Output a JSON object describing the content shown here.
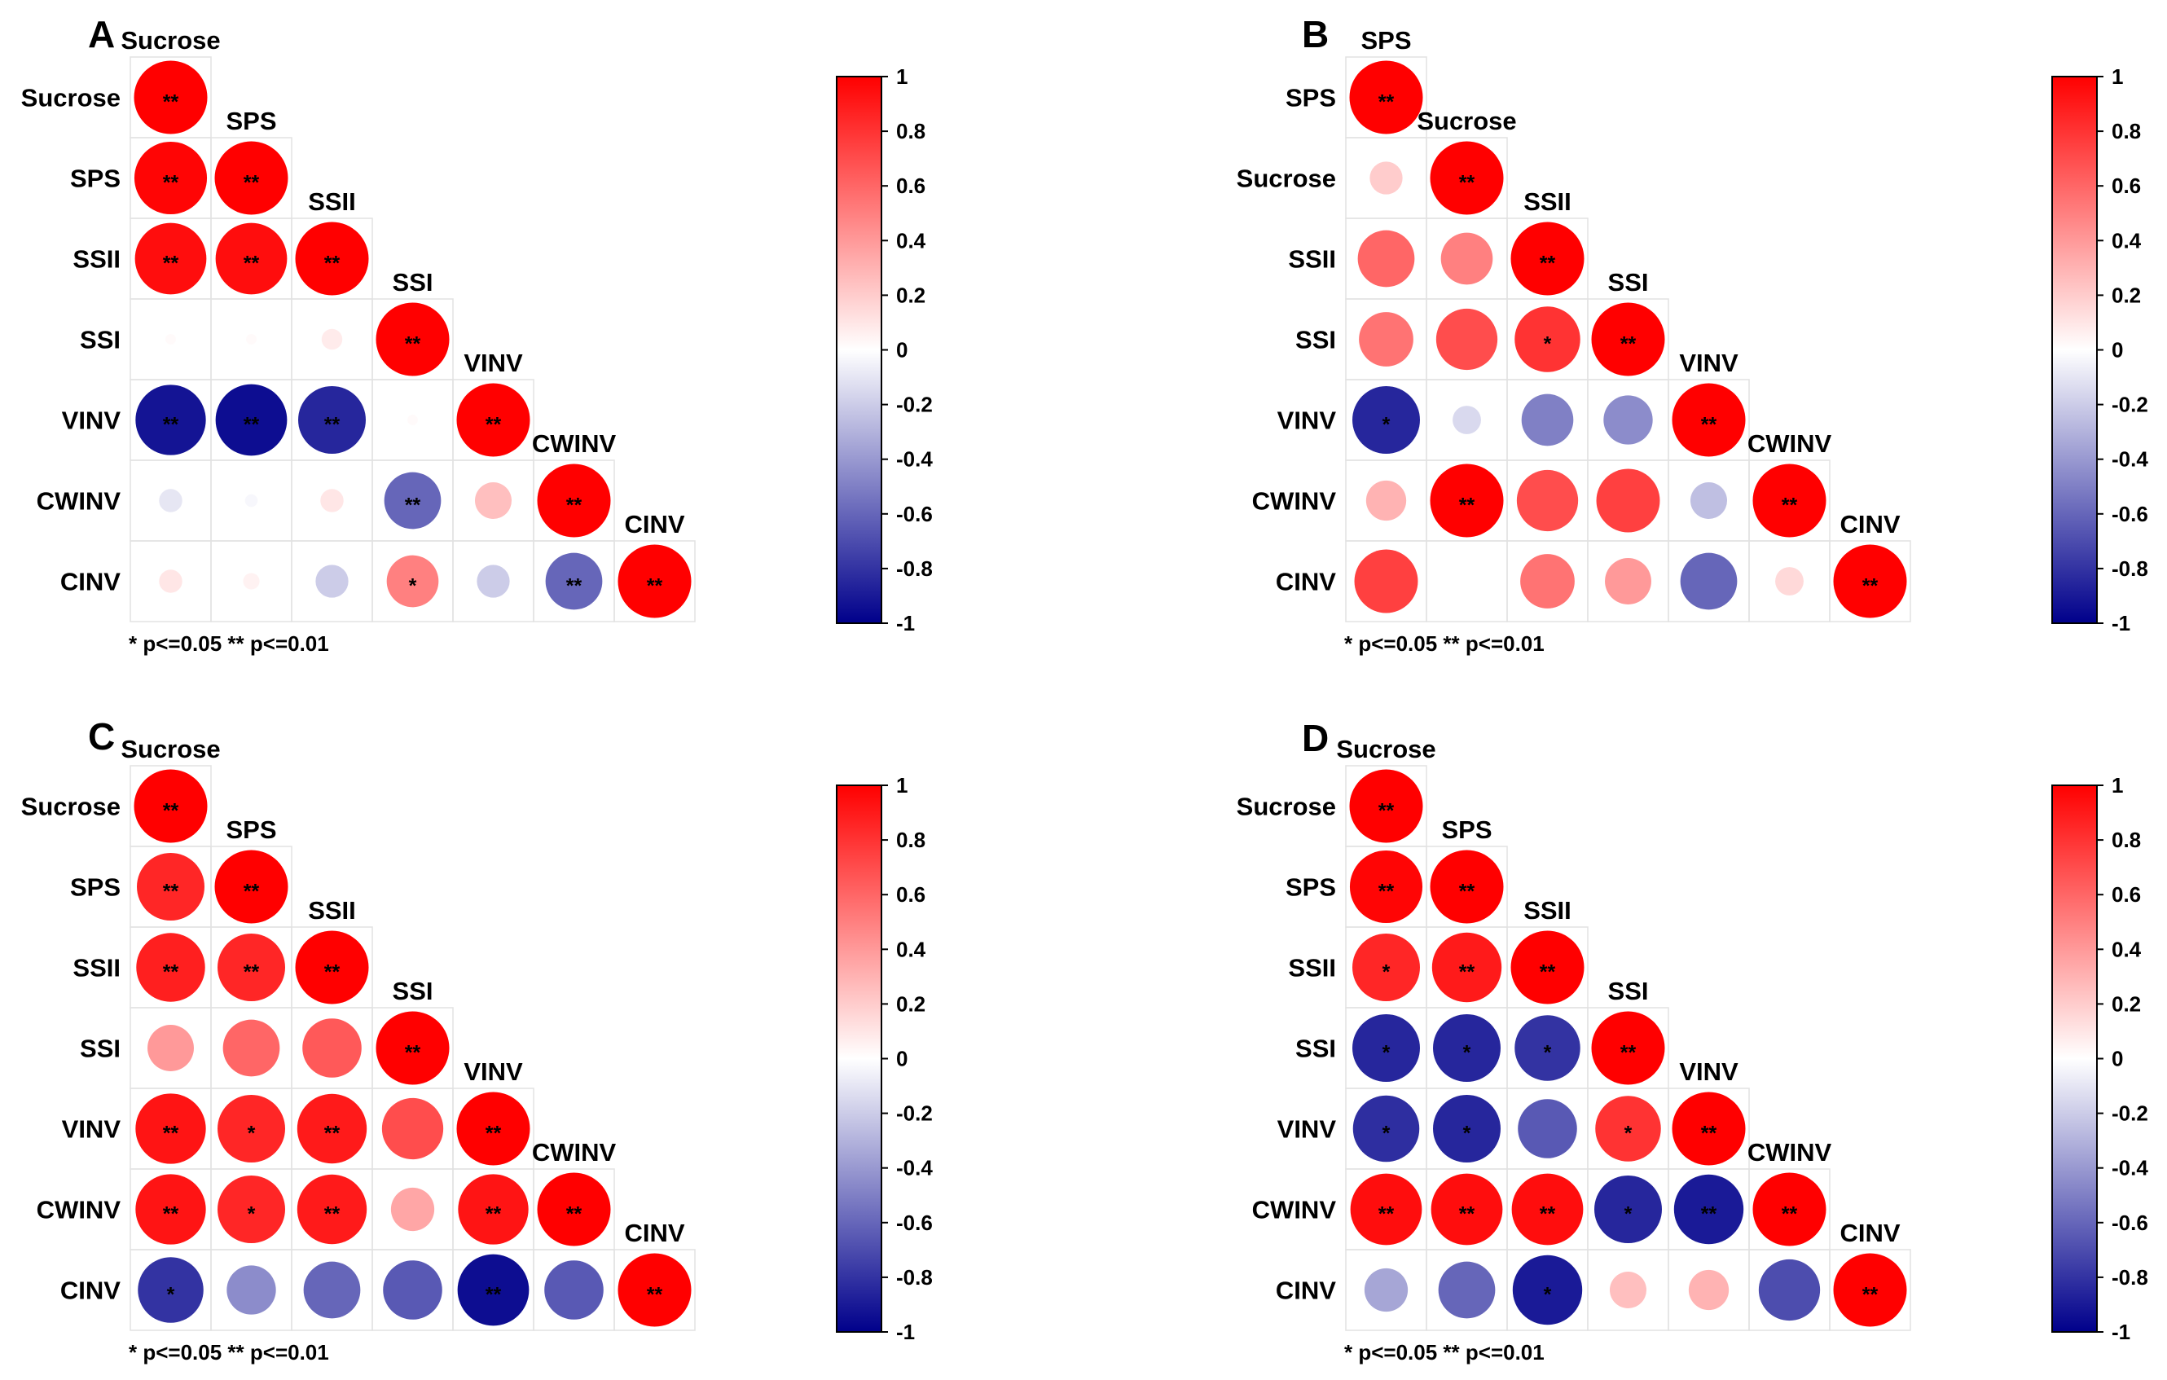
{
  "chart_data": [
    {
      "type": "heatmap",
      "panel": "A",
      "variables": [
        "Sucrose",
        "SPS",
        "SSII",
        "SSI",
        "VINV",
        "CWINV",
        "CINV"
      ],
      "correlations": [
        [
          1.0
        ],
        [
          0.98,
          1.0
        ],
        [
          0.95,
          0.95,
          1.0
        ],
        [
          0.02,
          0.02,
          0.08,
          1.0
        ],
        [
          -0.92,
          -0.95,
          -0.85,
          0.02,
          1.0
        ],
        [
          -0.1,
          -0.03,
          0.1,
          -0.6,
          0.25,
          1.0
        ],
        [
          0.1,
          0.05,
          -0.2,
          0.5,
          -0.2,
          -0.6,
          1.0
        ]
      ],
      "significance": [
        [
          "**"
        ],
        [
          "**",
          "**"
        ],
        [
          "**",
          "**",
          "**"
        ],
        [
          "",
          "",
          "",
          "**"
        ],
        [
          "**",
          "**",
          "**",
          "",
          "**"
        ],
        [
          "",
          "",
          "",
          "**",
          "",
          "**"
        ],
        [
          "",
          "",
          "",
          "*",
          "",
          "**",
          "**"
        ]
      ],
      "colorbar_ticks": [
        "1",
        "0.8",
        "0.6",
        "0.4",
        "0.2",
        "0",
        "-0.2",
        "-0.4",
        "-0.6",
        "-0.8",
        "-1"
      ],
      "note": "* p<=0.05  ** p<=0.01"
    },
    {
      "type": "heatmap",
      "panel": "B",
      "variables": [
        "SPS",
        "Sucrose",
        "SSII",
        "SSI",
        "VINV",
        "CWINV",
        "CINV"
      ],
      "correlations": [
        [
          1.0
        ],
        [
          0.2,
          1.0
        ],
        [
          0.6,
          0.5,
          1.0
        ],
        [
          0.55,
          0.7,
          0.8,
          1.0
        ],
        [
          -0.85,
          -0.15,
          -0.5,
          -0.45,
          1.0
        ],
        [
          0.3,
          1.0,
          0.7,
          0.75,
          -0.25,
          1.0
        ],
        [
          0.75,
          0.0,
          0.55,
          0.4,
          -0.6,
          0.15,
          1.0
        ]
      ],
      "significance": [
        [
          "**"
        ],
        [
          "",
          "**"
        ],
        [
          "",
          "",
          "**"
        ],
        [
          "",
          "",
          "*",
          "**"
        ],
        [
          "*",
          "",
          "",
          "",
          "**"
        ],
        [
          "",
          "**",
          "",
          "",
          "",
          "**"
        ],
        [
          "",
          "",
          "",
          "",
          "",
          "",
          "**"
        ]
      ],
      "colorbar_ticks": [
        "1",
        "0.8",
        "0.6",
        "0.4",
        "0.2",
        "0",
        "-0.2",
        "-0.4",
        "-0.6",
        "-0.8",
        "-1"
      ],
      "note": "* p<=0.05  ** p<=0.01"
    },
    {
      "type": "heatmap",
      "panel": "C",
      "variables": [
        "Sucrose",
        "SPS",
        "SSII",
        "SSI",
        "VINV",
        "CWINV",
        "CINV"
      ],
      "correlations": [
        [
          1.0
        ],
        [
          0.85,
          1.0
        ],
        [
          0.88,
          0.85,
          1.0
        ],
        [
          0.4,
          0.6,
          0.65,
          1.0
        ],
        [
          0.92,
          0.85,
          0.9,
          0.7,
          1.0
        ],
        [
          0.92,
          0.85,
          0.9,
          0.35,
          0.92,
          1.0
        ],
        [
          -0.8,
          -0.45,
          -0.6,
          -0.65,
          -0.95,
          -0.65,
          1.0
        ]
      ],
      "significance": [
        [
          "**"
        ],
        [
          "**",
          "**"
        ],
        [
          "**",
          "**",
          "**"
        ],
        [
          "",
          "",
          "",
          "**"
        ],
        [
          "**",
          "*",
          "**",
          "",
          "**"
        ],
        [
          "**",
          "*",
          "**",
          "",
          "**",
          "**"
        ],
        [
          "*",
          "",
          "",
          "",
          "**",
          "",
          "**"
        ]
      ],
      "colorbar_ticks": [
        "1",
        "0.8",
        "0.6",
        "0.4",
        "0.2",
        "0",
        "-0.2",
        "-0.4",
        "-0.6",
        "-0.8",
        "-1"
      ],
      "note": "* p<=0.05  ** p<=0.01"
    },
    {
      "type": "heatmap",
      "panel": "D",
      "variables": [
        "Sucrose",
        "SPS",
        "SSII",
        "SSI",
        "VINV",
        "CWINV",
        "CINV"
      ],
      "correlations": [
        [
          1.0
        ],
        [
          0.98,
          1.0
        ],
        [
          0.85,
          0.9,
          1.0
        ],
        [
          -0.85,
          -0.85,
          -0.8,
          1.0
        ],
        [
          -0.82,
          -0.85,
          -0.65,
          0.8,
          1.0
        ],
        [
          0.95,
          0.95,
          0.95,
          -0.85,
          -0.9,
          1.0
        ],
        [
          -0.35,
          -0.6,
          -0.9,
          0.25,
          0.3,
          -0.7,
          1.0
        ]
      ],
      "significance": [
        [
          "**"
        ],
        [
          "**",
          "**"
        ],
        [
          "*",
          "**",
          "**"
        ],
        [
          "*",
          "*",
          "*",
          "**"
        ],
        [
          "*",
          "*",
          "",
          "*",
          "**"
        ],
        [
          "**",
          "**",
          "**",
          "*",
          "**",
          "**"
        ],
        [
          "",
          "",
          "*",
          "",
          "",
          "",
          "**"
        ]
      ],
      "colorbar_ticks": [
        "1",
        "0.8",
        "0.6",
        "0.4",
        "0.2",
        "0",
        "-0.2",
        "-0.4",
        "-0.6",
        "-0.8",
        "-1"
      ],
      "note": "* p<=0.05  ** p<=0.01"
    }
  ]
}
